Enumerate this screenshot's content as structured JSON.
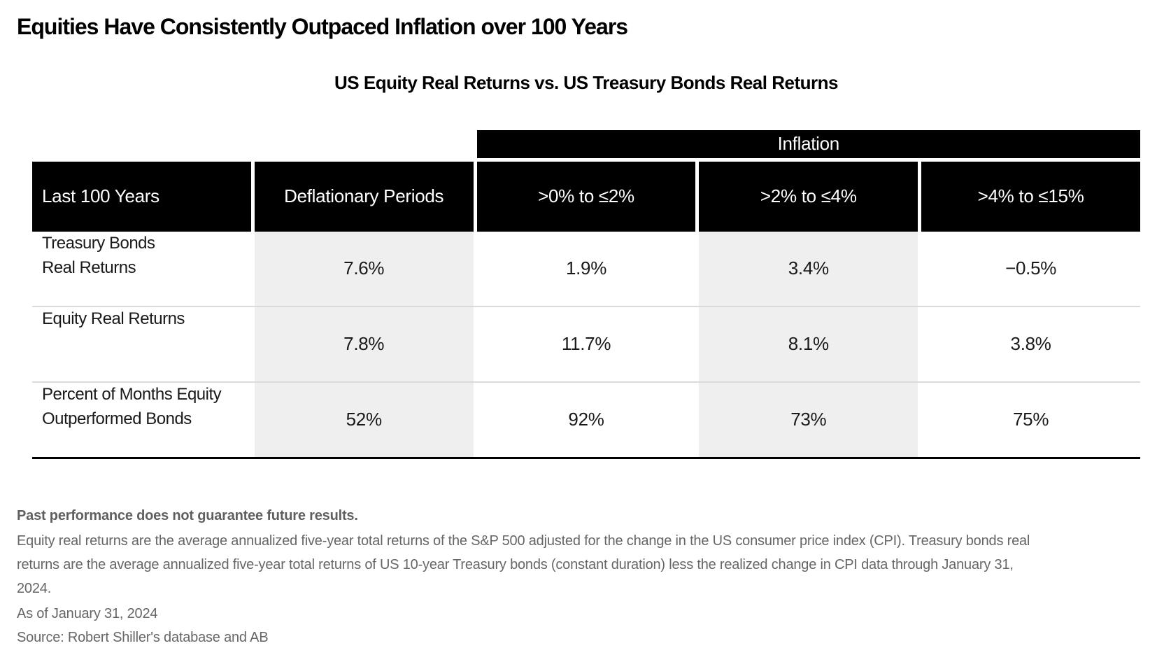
{
  "page": {
    "title": "Equities Have Consistently Outpaced Inflation over 100 Years",
    "subtitle": "US Equity Real Returns vs. US Treasury Bonds Real Returns"
  },
  "table": {
    "span_header": "Inflation",
    "columns": [
      "Last 100 Years",
      "Deflationary Periods",
      ">0% to ≤2%",
      ">2% to ≤4%",
      ">4% to ≤15%"
    ],
    "rows": [
      {
        "label_lines": [
          "Treasury Bonds",
          "Real Returns"
        ],
        "values": [
          "7.6%",
          "1.9%",
          "3.4%",
          "−0.5%"
        ]
      },
      {
        "label_lines": [
          "Equity Real Returns"
        ],
        "values": [
          "7.8%",
          "11.7%",
          "8.1%",
          "3.8%"
        ]
      },
      {
        "label_lines": [
          "Percent of Months Equity",
          "Outperformed Bonds"
        ],
        "values": [
          "52%",
          "92%",
          "73%",
          "75%"
        ]
      }
    ]
  },
  "footnotes": {
    "disclaimer": "Past performance does not guarantee future results.",
    "body": "Equity real returns are the average annualized five-year total returns of the S&P 500 adjusted for the change in the US consumer price index (CPI). Treasury bonds real returns are the average annualized five-year total returns of US 10-year Treasury bonds (constant duration) less the realized change in CPI data through January 31, 2024.",
    "as_of": "As of January 31, 2024",
    "source": "Source: Robert Shiller's database and AB"
  },
  "colors": {
    "header_bg": "#000000",
    "header_text": "#ffffff",
    "stripe": "#efefef",
    "divider": "#dadada",
    "body_text": "#1a1a1a",
    "footnote_text": "#666666"
  },
  "chart_data": {
    "type": "table",
    "title": "US Equity Real Returns vs. US Treasury Bonds Real Returns",
    "group_header": "Inflation",
    "row_header": "Last 100 Years",
    "columns": [
      "Deflationary Periods",
      ">0% to ≤2%",
      ">2% to ≤4%",
      ">4% to ≤15%"
    ],
    "inflation_group_columns": [
      ">0% to ≤2%",
      ">2% to ≤4%",
      ">4% to ≤15%"
    ],
    "rows": [
      {
        "label": "Treasury Bonds Real Returns",
        "values_pct": [
          7.6,
          1.9,
          3.4,
          -0.5
        ]
      },
      {
        "label": "Equity Real Returns",
        "values_pct": [
          7.8,
          11.7,
          8.1,
          3.8
        ]
      },
      {
        "label": "Percent of Months Equity Outperformed Bonds",
        "values_pct": [
          52,
          92,
          73,
          75
        ]
      }
    ]
  }
}
